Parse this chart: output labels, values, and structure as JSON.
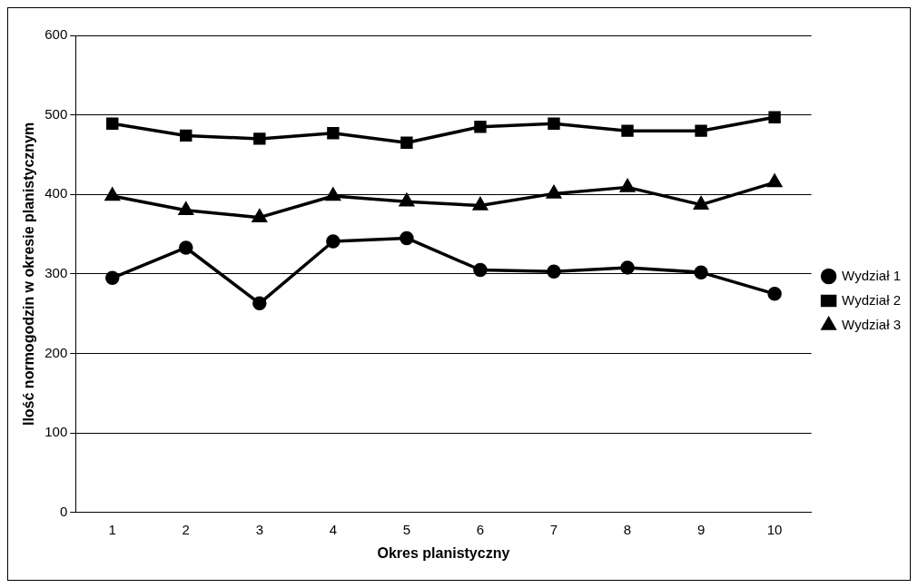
{
  "chart_data": {
    "type": "line",
    "xlabel": "Okres planistyczny",
    "ylabel": "Ilość normogodzin w okresie planistycznym",
    "categories": [
      "1",
      "2",
      "3",
      "4",
      "5",
      "6",
      "7",
      "8",
      "9",
      "10"
    ],
    "series": [
      {
        "name": "Wydział 1",
        "color": "#000000",
        "marker": "circle",
        "values": [
          295,
          333,
          263,
          341,
          345,
          305,
          303,
          308,
          302,
          275
        ]
      },
      {
        "name": "Wydział 2",
        "color": "#000000",
        "marker": "square",
        "values": [
          489,
          474,
          470,
          477,
          465,
          485,
          489,
          480,
          480,
          497
        ]
      },
      {
        "name": "Wydział 3",
        "color": "#000000",
        "marker": "triangle",
        "values": [
          398,
          380,
          371,
          398,
          391,
          386,
          401,
          409,
          387,
          415
        ]
      }
    ],
    "ylim": [
      0,
      600
    ],
    "yticks": [
      0,
      100,
      200,
      300,
      400,
      500,
      600
    ],
    "grid": "y",
    "legend": "right",
    "line_style": "solid"
  }
}
